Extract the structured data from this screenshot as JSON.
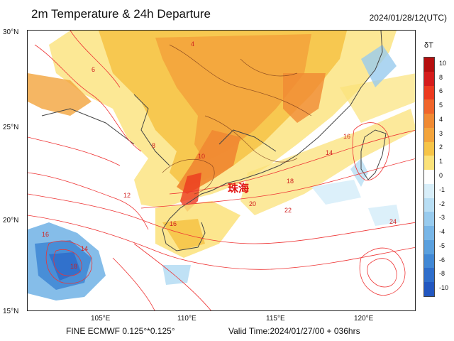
{
  "title": "2m Temperature & 24h Departure",
  "timestamp": "2024/01/28/12(UTC)",
  "model": "FINE ECMWF 0.125°*0.125°",
  "valid_time": "Valid Time:2024/01/27/00 + 036hrs",
  "city_label": "珠海",
  "legend_title": "δT",
  "lat_labels": [
    "30°N",
    "25°N",
    "20°N",
    "15°N"
  ],
  "lon_labels": [
    "105°E",
    "110°E",
    "115°E",
    "120°E"
  ],
  "legend_values": [
    "10",
    "8",
    "6",
    "5",
    "4",
    "3",
    "2",
    "1",
    "0",
    "-1",
    "-2",
    "-3",
    "-4",
    "-5",
    "-6",
    "-8",
    "-10"
  ],
  "legend_colors": [
    "#b50f0f",
    "#d51c1c",
    "#ec3a1f",
    "#f0652b",
    "#f08a33",
    "#f3a43c",
    "#f6c448",
    "#fbe27a",
    "#ffffff",
    "#d8eef9",
    "#b8def4",
    "#98cbee",
    "#78b6e7",
    "#5aa0de",
    "#4188d5",
    "#2f6ecb",
    "#2257c0"
  ],
  "contour_labels": [
    "4",
    "6",
    "8",
    "10",
    "12",
    "14",
    "16",
    "18",
    "20",
    "22",
    "24"
  ]
}
